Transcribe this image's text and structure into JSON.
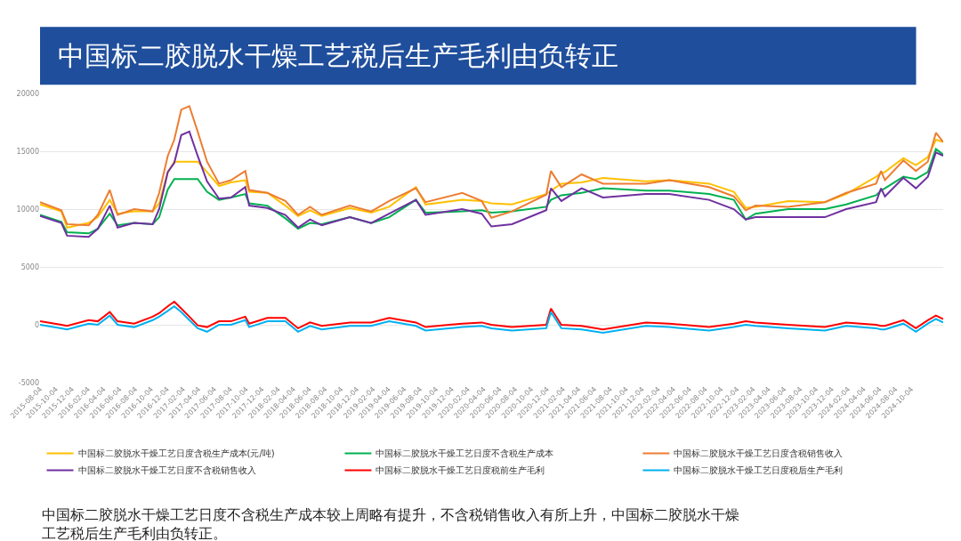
{
  "chart_data": {
    "type": "line",
    "title": "中国标二胶脱水干燥工艺税后生产毛利由负转正",
    "annotations": [
      "中国标二胶脱水干燥工艺日度不含税生产成本较上周略有提升，不含税销售收入有所上升，中国标二胶脱水干燥工艺税后生产毛利由负转正。"
    ],
    "x": [
      "2015-08-04",
      "2015-10-25",
      "2015-11-16",
      "2016-02-07",
      "2016-03-13",
      "2016-04-28",
      "2016-05-28",
      "2016-07-31",
      "2016-10-10",
      "2016-11-04",
      "2016-12-07",
      "2017-01-01",
      "2017-01-28",
      "2017-02-28",
      "2017-04-01",
      "2017-05-07",
      "2017-06-22",
      "2017-08-07",
      "2017-10-01",
      "2017-10-16",
      "2017-12-25",
      "2018-03-04",
      "2018-04-22",
      "2018-06-07",
      "2018-07-22",
      "2018-11-07",
      "2019-01-28",
      "2019-04-07",
      "2019-07-19",
      "2019-08-25",
      "2020-01-13",
      "2020-03-28",
      "2020-05-04",
      "2020-07-22",
      "2020-12-01",
      "2020-12-19",
      "2021-01-28",
      "2021-04-16",
      "2021-07-07",
      "2021-12-19",
      "2022-03-19",
      "2022-08-19",
      "2022-11-22",
      "2023-01-07",
      "2023-02-13",
      "2023-06-19",
      "2023-11-07",
      "2024-01-28",
      "2024-05-22",
      "2024-06-10",
      "2024-06-25",
      "2024-09-04",
      "2024-10-22",
      "2024-12-07",
      "2025-01-07",
      "2025-02-04"
    ],
    "series": [
      {
        "name": "中国标二胶脱水干燥工艺日度含税生产成本(元/吨)",
        "color": "#ffc000",
        "values": [
          10400,
          9800,
          8400,
          8800,
          9300,
          10800,
          9600,
          9800,
          9800,
          10500,
          13200,
          14100,
          14100,
          14100,
          14100,
          13200,
          12000,
          12300,
          12500,
          11500,
          11400,
          10300,
          9400,
          9900,
          9400,
          10100,
          9700,
          10200,
          11900,
          10400,
          10800,
          10700,
          10500,
          10400,
          11300,
          11600,
          12200,
          12300,
          12700,
          12400,
          12500,
          12200,
          11500,
          10100,
          10200,
          10700,
          10600,
          11300,
          12800,
          13100,
          13200,
          14400,
          13800,
          14500,
          16000,
          15800
        ]
      },
      {
        "name": "中国标二胶脱水干燥工艺日度不含税生产成本",
        "color": "#00b050",
        "values": [
          9500,
          8900,
          8000,
          7900,
          8300,
          9600,
          8600,
          8800,
          8700,
          9300,
          11700,
          12600,
          12600,
          12600,
          12600,
          11500,
          10800,
          11000,
          11300,
          10500,
          10300,
          9200,
          8300,
          8800,
          8700,
          9300,
          8800,
          9300,
          10800,
          9700,
          9800,
          9900,
          9700,
          9800,
          10200,
          10800,
          11200,
          11400,
          11800,
          11600,
          11600,
          11300,
          10800,
          9100,
          9600,
          10000,
          10000,
          10400,
          11200,
          11600,
          11800,
          12800,
          12600,
          13200,
          15200,
          14700
        ]
      },
      {
        "name": "中国标二胶脱水干燥工艺日度含税销售收入",
        "color": "#ed7d31",
        "values": [
          10600,
          9900,
          8700,
          8600,
          9500,
          11650,
          9500,
          10000,
          9800,
          11400,
          14600,
          16000,
          18600,
          18900,
          16700,
          14100,
          12200,
          12500,
          13300,
          11650,
          11400,
          10700,
          9500,
          10200,
          9500,
          10300,
          9800,
          10700,
          11800,
          10600,
          11400,
          10700,
          9250,
          9800,
          11250,
          13300,
          11900,
          13000,
          12200,
          12200,
          12500,
          11900,
          11100,
          9900,
          10300,
          10200,
          10600,
          11400,
          12200,
          13300,
          12500,
          14200,
          13300,
          14100,
          16600,
          15800
        ]
      },
      {
        "name": "中国标二胶脱水干燥工艺日度不含税销售收入",
        "color": "#7030a0",
        "values": [
          9400,
          8800,
          7700,
          7600,
          8300,
          10300,
          8400,
          8800,
          8700,
          10000,
          13200,
          14000,
          16400,
          16700,
          14600,
          12400,
          10900,
          11000,
          11900,
          10300,
          10100,
          9500,
          8400,
          9100,
          8600,
          9300,
          8800,
          9600,
          10800,
          9500,
          10000,
          9600,
          8500,
          8700,
          9900,
          11800,
          10700,
          11800,
          11000,
          11300,
          11300,
          10800,
          10000,
          9100,
          9300,
          9300,
          9300,
          10000,
          10600,
          11800,
          11100,
          12700,
          11800,
          12800,
          14900,
          14600
        ]
      },
      {
        "name": "中国标二胶脱水干燥工艺日度税前生产毛利",
        "color": "#ff0000",
        "values": [
          300,
          0,
          -100,
          400,
          300,
          1100,
          300,
          100,
          700,
          1000,
          1600,
          2000,
          1400,
          700,
          -50,
          -200,
          300,
          300,
          700,
          100,
          600,
          600,
          -300,
          200,
          -100,
          200,
          200,
          600,
          200,
          -200,
          100,
          200,
          0,
          -200,
          0,
          1400,
          0,
          -100,
          -400,
          200,
          100,
          -200,
          100,
          300,
          200,
          0,
          -200,
          200,
          0,
          -100,
          -100,
          400,
          -300,
          400,
          800,
          500
        ]
      },
      {
        "name": "中国标二胶脱水干燥工艺日度税后生产毛利",
        "color": "#00b0f0",
        "values": [
          0,
          -300,
          -400,
          100,
          0,
          800,
          0,
          -200,
          400,
          700,
          1200,
          1600,
          1100,
          400,
          -300,
          -600,
          0,
          0,
          400,
          -200,
          300,
          300,
          -600,
          -100,
          -400,
          -100,
          -100,
          300,
          -100,
          -500,
          -200,
          -100,
          -300,
          -500,
          -300,
          1100,
          -300,
          -400,
          -700,
          -100,
          -200,
          -500,
          -200,
          0,
          -100,
          -300,
          -500,
          -100,
          -300,
          -400,
          -400,
          100,
          -600,
          100,
          500,
          200
        ]
      }
    ],
    "xlim": [
      "2015-08-04",
      "2025-02-04"
    ],
    "xticks": [
      "2015-08-04",
      "2015-10-04",
      "2015-12-04",
      "2016-02-04",
      "2016-04-04",
      "2016-06-04",
      "2016-08-04",
      "2016-10-04",
      "2016-12-04",
      "2017-02-04",
      "2017-04-04",
      "2017-06-04",
      "2017-08-04",
      "2017-10-04",
      "2017-12-04",
      "2018-02-04",
      "2018-04-04",
      "2018-06-04",
      "2018-08-04",
      "2018-10-04",
      "2018-12-04",
      "2019-02-04",
      "2019-04-04",
      "2019-06-04",
      "2019-08-04",
      "2019-10-04",
      "2019-12-04",
      "2020-02-04",
      "2020-04-04",
      "2020-06-04",
      "2020-08-04",
      "2020-10-04",
      "2020-12-04",
      "2021-02-04",
      "2021-04-04",
      "2021-06-04",
      "2021-08-04",
      "2021-10-04",
      "2021-12-04",
      "2022-02-04",
      "2022-04-04",
      "2022-06-04",
      "2022-08-04",
      "2022-10-04",
      "2022-12-04",
      "2023-02-04",
      "2023-04-04",
      "2023-06-04",
      "2023-08-04",
      "2023-10-04",
      "2023-12-04",
      "2024-02-04",
      "2024-04-04",
      "2024-06-04",
      "2024-08-04",
      "2024-10-04"
    ],
    "ylim": [
      -5000,
      20000
    ],
    "yticks": [
      -5000,
      0,
      5000,
      10000,
      15000,
      20000
    ],
    "grid": "y",
    "legend": "bottom",
    "marker": "none",
    "line_style": "solid"
  }
}
